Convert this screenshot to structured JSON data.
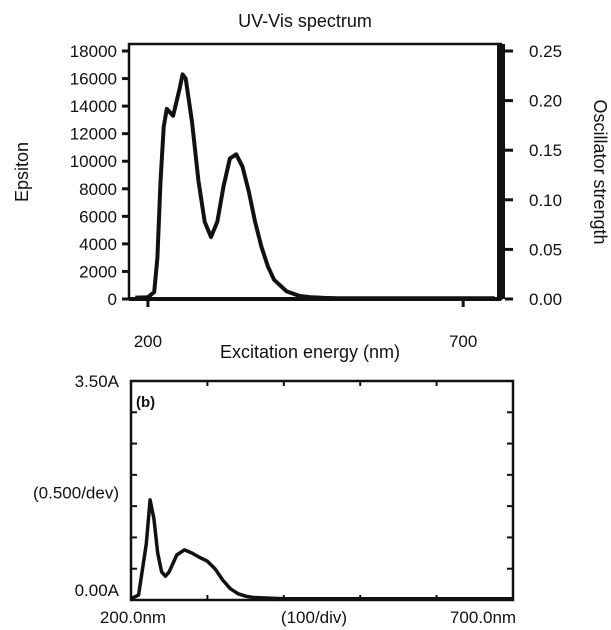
{
  "chart_data": [
    {
      "type": "line",
      "title": "UV-Vis spectrum",
      "xlabel": "Excitation energy (nm)",
      "ylabel": "Epsiton",
      "y2label": "Oscillator strength",
      "xlim": [
        170,
        760
      ],
      "ylim": [
        0,
        18000
      ],
      "y2lim": [
        0,
        0.25
      ],
      "x_ticks": [
        "200",
        "700"
      ],
      "y_ticks": [
        "0",
        "2000",
        "4000",
        "6000",
        "8000",
        "10000",
        "12000",
        "14000",
        "16000",
        "18000"
      ],
      "y2_ticks": [
        "0.00",
        "0.05",
        "0.10",
        "0.15",
        "0.20",
        "0.25"
      ],
      "grid": false,
      "series": [
        {
          "x": [
            180,
            200,
            210,
            215,
            220,
            225,
            230,
            240,
            250,
            255,
            260,
            270,
            280,
            290,
            300,
            310,
            320,
            330,
            340,
            350,
            360,
            370,
            380,
            390,
            400,
            420,
            440,
            460,
            480,
            500,
            550,
            600,
            650,
            700,
            750
          ],
          "y": [
            100,
            120,
            500,
            3000,
            8500,
            12500,
            13800,
            13300,
            15200,
            16300,
            16000,
            12800,
            8600,
            5600,
            4500,
            5600,
            8200,
            10200,
            10500,
            9600,
            7800,
            5600,
            3800,
            2400,
            1400,
            550,
            230,
            120,
            80,
            60,
            50,
            50,
            50,
            50,
            50
          ]
        }
      ]
    },
    {
      "type": "line",
      "panel_label": "(b)",
      "xlim": [
        200,
        700
      ],
      "ylim": [
        0,
        3.5
      ],
      "x_ticks": [
        "200.0nm",
        "(100/div)",
        "700.0nm"
      ],
      "y_ticks": [
        "0.00A",
        "(0.500/dev)",
        "3.50A"
      ],
      "grid": false,
      "series": [
        {
          "x": [
            200,
            210,
            220,
            225,
            230,
            235,
            240,
            245,
            250,
            260,
            270,
            280,
            290,
            300,
            310,
            320,
            330,
            340,
            350,
            360,
            380,
            400,
            450,
            500,
            550,
            600,
            700
          ],
          "y": [
            0.02,
            0.08,
            0.9,
            1.6,
            1.3,
            0.75,
            0.45,
            0.38,
            0.45,
            0.72,
            0.8,
            0.75,
            0.68,
            0.62,
            0.5,
            0.32,
            0.18,
            0.1,
            0.06,
            0.04,
            0.03,
            0.02,
            0.02,
            0.02,
            0.02,
            0.02,
            0.02
          ]
        }
      ]
    }
  ]
}
